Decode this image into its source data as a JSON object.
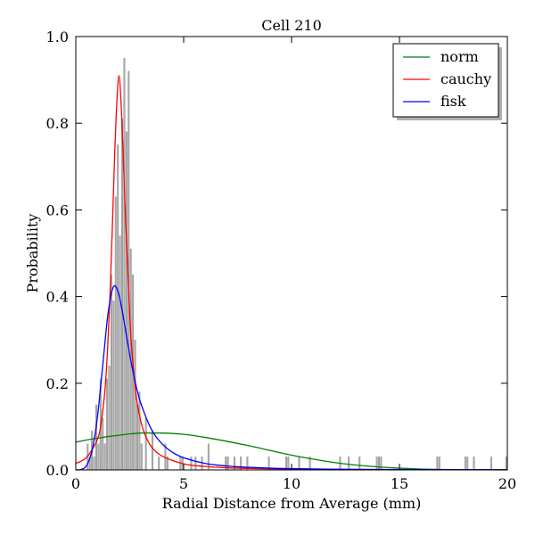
{
  "chart_data": {
    "type": "histogram",
    "title": "Cell 210",
    "xlabel": "Radial Distance from Average (mm)",
    "ylabel": "Probability",
    "xlim": [
      0,
      20
    ],
    "ylim": [
      0,
      1.0
    ],
    "x_ticks": [
      0,
      5,
      10,
      15,
      20
    ],
    "x_tick_labels": [
      "0",
      "5",
      "10",
      "15",
      "20"
    ],
    "y_ticks": [
      0,
      0.2,
      0.4,
      0.6,
      0.8,
      1.0
    ],
    "y_tick_labels": [
      "0.0",
      "0.2",
      "0.4",
      "0.6",
      "0.8",
      "1.0"
    ],
    "grid": false,
    "legend_placement": "top-right",
    "histogram": {
      "color": "#b0b0b0",
      "bin_width": 0.1,
      "bars": [
        [
          0.5,
          0.06
        ],
        [
          0.6,
          0.03
        ],
        [
          0.7,
          0.09
        ],
        [
          0.8,
          0.03
        ],
        [
          0.9,
          0.15
        ],
        [
          1.0,
          0.06
        ],
        [
          1.1,
          0.21
        ],
        [
          1.2,
          0.12
        ],
        [
          1.3,
          0.06
        ],
        [
          1.4,
          0.21
        ],
        [
          1.5,
          0.24
        ],
        [
          1.6,
          0.45
        ],
        [
          1.7,
          0.39
        ],
        [
          1.8,
          0.63
        ],
        [
          1.9,
          0.75
        ],
        [
          2.0,
          0.54
        ],
        [
          2.1,
          0.81
        ],
        [
          2.2,
          0.95
        ],
        [
          2.3,
          0.78
        ],
        [
          2.4,
          0.92
        ],
        [
          2.5,
          0.51
        ],
        [
          2.6,
          0.45
        ],
        [
          2.7,
          0.3
        ],
        [
          2.8,
          0.15
        ],
        [
          2.9,
          0.18
        ],
        [
          3.0,
          0.06
        ],
        [
          3.2,
          0.12
        ],
        [
          3.5,
          0.09
        ],
        [
          3.8,
          0.03
        ],
        [
          4.1,
          0.06
        ],
        [
          4.2,
          0.03
        ],
        [
          4.8,
          0.03
        ],
        [
          4.9,
          0.03
        ],
        [
          5.3,
          0.03
        ],
        [
          5.5,
          0.03
        ],
        [
          5.8,
          0.03
        ],
        [
          6.1,
          0.06
        ],
        [
          6.9,
          0.03
        ],
        [
          7.0,
          0.03
        ],
        [
          7.3,
          0.03
        ],
        [
          7.6,
          0.03
        ],
        [
          7.9,
          0.03
        ],
        [
          8.9,
          0.03
        ],
        [
          9.7,
          0.03
        ],
        [
          9.8,
          0.03
        ],
        [
          10.3,
          0.03
        ],
        [
          10.8,
          0.03
        ],
        [
          12.2,
          0.03
        ],
        [
          12.6,
          0.03
        ],
        [
          13.1,
          0.03
        ],
        [
          13.9,
          0.03
        ],
        [
          14.0,
          0.03
        ],
        [
          14.1,
          0.03
        ],
        [
          16.7,
          0.03
        ],
        [
          16.8,
          0.03
        ],
        [
          18.0,
          0.03
        ],
        [
          18.1,
          0.03
        ],
        [
          18.4,
          0.03
        ],
        [
          19.2,
          0.03
        ],
        [
          19.9,
          0.03
        ]
      ]
    },
    "series": [
      {
        "name": "norm",
        "color": "#008000",
        "x": [
          0,
          0.5,
          1,
          1.5,
          2,
          2.5,
          3,
          3.5,
          4,
          4.5,
          5,
          5.5,
          6,
          7,
          8,
          9,
          10,
          11,
          12,
          13,
          14,
          15,
          16,
          17,
          18,
          19,
          20
        ],
        "y": [
          0.064,
          0.069,
          0.073,
          0.077,
          0.08,
          0.083,
          0.085,
          0.085,
          0.085,
          0.084,
          0.082,
          0.079,
          0.075,
          0.066,
          0.056,
          0.045,
          0.034,
          0.025,
          0.017,
          0.011,
          0.007,
          0.004,
          0.002,
          0.001,
          0.0006,
          0.0003,
          0.0001
        ]
      },
      {
        "name": "cauchy",
        "color": "#ff0000",
        "x": [
          0,
          0.5,
          1.0,
          1.2,
          1.4,
          1.6,
          1.8,
          1.9,
          2.0,
          2.1,
          2.2,
          2.3,
          2.4,
          2.5,
          2.6,
          2.8,
          3.0,
          3.2,
          3.5,
          4.0,
          5.0,
          6.0,
          7.0,
          8.0,
          10.0,
          12.0,
          15.0,
          20.0
        ],
        "y": [
          0.015,
          0.029,
          0.07,
          0.117,
          0.216,
          0.423,
          0.724,
          0.845,
          0.91,
          0.845,
          0.724,
          0.586,
          0.475,
          0.359,
          0.275,
          0.17,
          0.115,
          0.082,
          0.054,
          0.032,
          0.014,
          0.008,
          0.005,
          0.0035,
          0.002,
          0.0013,
          0.0008,
          0.0004
        ]
      },
      {
        "name": "fisk",
        "color": "#0000ff",
        "x": [
          0,
          0.25,
          0.5,
          0.75,
          1.0,
          1.25,
          1.5,
          1.75,
          2.0,
          2.25,
          2.5,
          2.75,
          3.0,
          3.5,
          4.0,
          4.5,
          5.0,
          6.0,
          7.0,
          8.0,
          9.0,
          10.0,
          12.0,
          14.0,
          16.0,
          18.0,
          20.0
        ],
        "y": [
          0,
          0.001,
          0.01,
          0.044,
          0.121,
          0.242,
          0.363,
          0.423,
          0.404,
          0.339,
          0.266,
          0.204,
          0.156,
          0.094,
          0.06,
          0.04,
          0.028,
          0.015,
          0.009,
          0.006,
          0.004,
          0.003,
          0.0016,
          0.001,
          0.0006,
          0.0004,
          0.0003
        ]
      }
    ]
  }
}
